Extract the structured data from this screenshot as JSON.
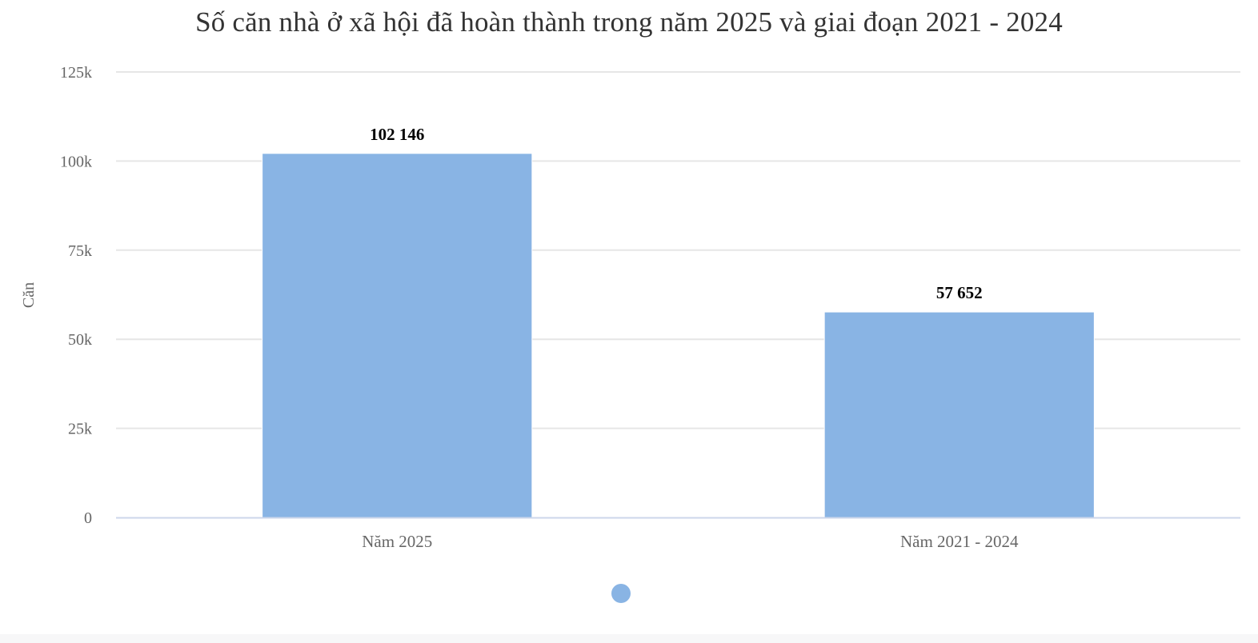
{
  "chart_data": {
    "type": "bar",
    "title": "Số căn nhà ở xã hội đã hoàn thành trong năm 2025 và giai đoạn 2021 - 2024",
    "xlabel": "",
    "ylabel": "Căn",
    "categories": [
      "Năm 2025",
      "Năm 2021 - 2024"
    ],
    "values": [
      102146,
      57652
    ],
    "data_labels": [
      "102 146",
      "57 652"
    ],
    "ylim": [
      0,
      125000
    ],
    "yticks": [
      0,
      25000,
      50000,
      75000,
      100000,
      125000
    ],
    "ytick_labels": [
      "0",
      "25k",
      "50k",
      "75k",
      "100k",
      "125k"
    ],
    "grid": true,
    "legend": {
      "placement": "bottom",
      "entries": [
        ""
      ]
    },
    "colors": {
      "bar": "#89b4e4",
      "grid": "#e6e6e6",
      "axis": "#ccd6eb",
      "text": "#666666",
      "title": "#333333",
      "label": "#000000"
    }
  }
}
